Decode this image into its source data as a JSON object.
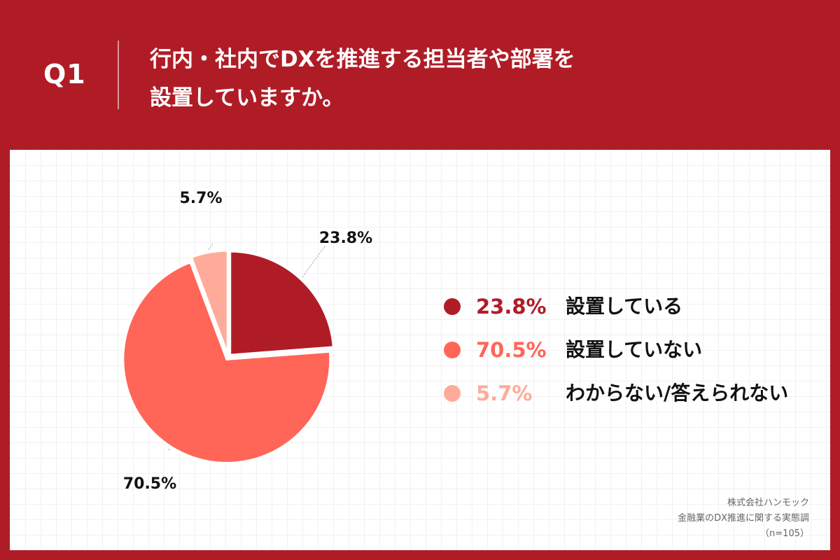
{
  "header": {
    "question_number": "Q1",
    "question_line1": "行内・社内でDXを推進する担当者や部署を",
    "question_line2": "設置していますか。"
  },
  "legend": [
    {
      "value": "23.8%",
      "label": "設置している",
      "color": "#b01c26"
    },
    {
      "value": "70.5%",
      "label": "設置していない",
      "color": "#ff6658"
    },
    {
      "value": "5.7%",
      "label": "わからない/答えられない",
      "color": "#ffab99"
    }
  ],
  "source": {
    "company": "株式会社ハンモック",
    "survey": "金融業のDX推進に関する実態調",
    "sample": "（n=105）"
  },
  "chart_data": {
    "type": "pie",
    "title": "",
    "categories": [
      "設置している",
      "設置していない",
      "わからない/答えられない"
    ],
    "values": [
      23.8,
      70.5,
      5.7
    ],
    "labels": [
      "23.8%",
      "70.5%",
      "5.7%"
    ],
    "colors": [
      "#b01c26",
      "#ff6658",
      "#ffab99"
    ],
    "legend_position": "right"
  }
}
